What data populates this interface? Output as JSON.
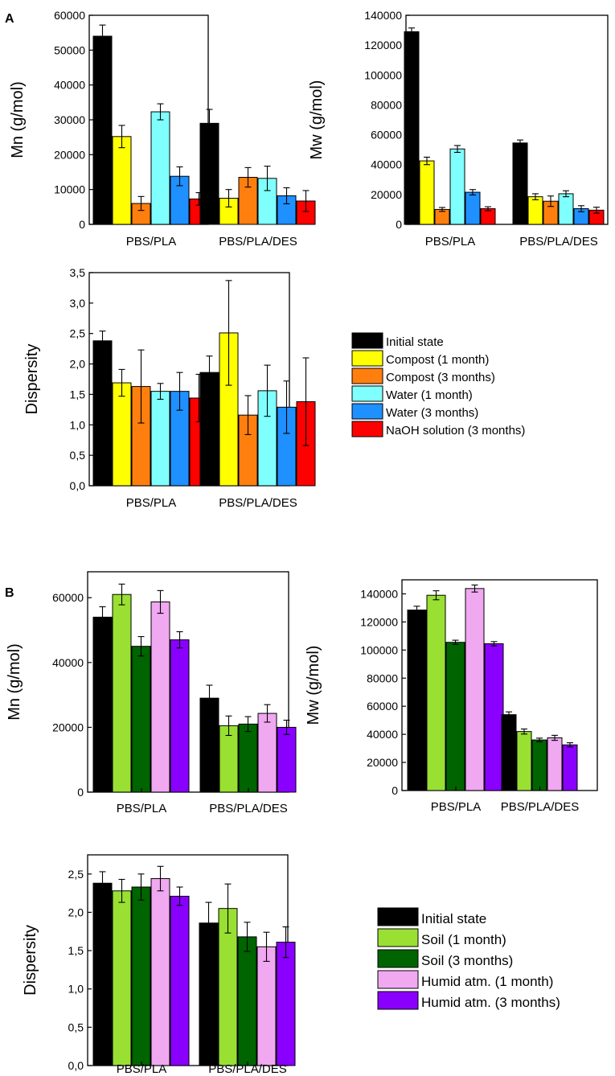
{
  "panel_labels": [
    "A",
    "B"
  ],
  "legend_a": {
    "entries": [
      {
        "label": "Initial state",
        "color": "#000000"
      },
      {
        "label": "Compost (1 month)",
        "color": "#ffff00"
      },
      {
        "label": "Compost (3 months)",
        "color": "#ff7f0e"
      },
      {
        "label": "Water (1 month)",
        "color": "#80ffff"
      },
      {
        "label": "Water (3 months)",
        "color": "#1e90ff"
      },
      {
        "label": "NaOH solution (3 months)",
        "color": "#ff0000"
      }
    ]
  },
  "legend_b": {
    "entries": [
      {
        "label": "Initial state",
        "color": "#000000"
      },
      {
        "label": "Soil (1 month)",
        "color": "#99e033"
      },
      {
        "label": "Soil (3 months)",
        "color": "#006400"
      },
      {
        "label": "Humid atm. (1 month)",
        "color": "#f0a8f0"
      },
      {
        "label": "Humid atm. (3 months)",
        "color": "#8a00ff"
      }
    ]
  },
  "chart_data": [
    {
      "id": "a_mn",
      "panel": "A",
      "type": "bar",
      "ylabel": "Mn (g/mol)",
      "ylim": [
        0,
        60000
      ],
      "yticks": [
        "0",
        "10000",
        "20000",
        "30000",
        "40000",
        "50000",
        "60000"
      ],
      "categories": [
        "PBS/PLA",
        "PBS/PLA/DES"
      ],
      "series": [
        {
          "name": "Initial state",
          "values": [
            54000,
            29000
          ],
          "errors": [
            3200,
            4000
          ]
        },
        {
          "name": "Compost (1 month)",
          "values": [
            25200,
            7500
          ],
          "errors": [
            3200,
            2500
          ]
        },
        {
          "name": "Compost (3 months)",
          "values": [
            6000,
            13500
          ],
          "errors": [
            2000,
            2800
          ]
        },
        {
          "name": "Water (1 month)",
          "values": [
            32300,
            13200
          ],
          "errors": [
            2300,
            3500
          ]
        },
        {
          "name": "Water (3 months)",
          "values": [
            13800,
            8200
          ],
          "errors": [
            2700,
            2300
          ]
        },
        {
          "name": "NaOH solution (3 months)",
          "values": [
            7300,
            6700
          ],
          "errors": [
            1800,
            3000
          ]
        }
      ]
    },
    {
      "id": "a_mw",
      "panel": "A",
      "type": "bar",
      "ylabel": "Mw (g/mol)",
      "ylim": [
        0,
        140000
      ],
      "yticks": [
        "0",
        "20000",
        "40000",
        "60000",
        "80000",
        "100000",
        "120000",
        "140000"
      ],
      "categories": [
        "PBS/PLA",
        "PBS/PLA/DES"
      ],
      "series": [
        {
          "name": "Initial state",
          "values": [
            129000,
            54500
          ],
          "errors": [
            2500,
            2000
          ]
        },
        {
          "name": "Compost (1 month)",
          "values": [
            42500,
            18500
          ],
          "errors": [
            2500,
            2000
          ]
        },
        {
          "name": "Compost (3 months)",
          "values": [
            10000,
            15500
          ],
          "errors": [
            1300,
            3500
          ]
        },
        {
          "name": "Water (1 month)",
          "values": [
            50500,
            20500
          ],
          "errors": [
            2300,
            2000
          ]
        },
        {
          "name": "Water (3 months)",
          "values": [
            21500,
            10500
          ],
          "errors": [
            1800,
            2000
          ]
        },
        {
          "name": "NaOH solution (3 months)",
          "values": [
            10500,
            9500
          ],
          "errors": [
            1300,
            2000
          ]
        }
      ]
    },
    {
      "id": "a_disp",
      "panel": "A",
      "type": "bar",
      "ylabel": "Dispersity",
      "ylim": [
        0,
        3.5
      ],
      "yticks": [
        "0,0",
        "0,5",
        "1,0",
        "1,5",
        "2,0",
        "2,5",
        "3,0",
        "3,5"
      ],
      "categories": [
        "PBS/PLA",
        "PBS/PLA/DES"
      ],
      "series": [
        {
          "name": "Initial state",
          "values": [
            2.38,
            1.86
          ],
          "errors": [
            0.16,
            0.27
          ]
        },
        {
          "name": "Compost (1 month)",
          "values": [
            1.69,
            2.51
          ],
          "errors": [
            0.22,
            0.86
          ]
        },
        {
          "name": "Compost (3 months)",
          "values": [
            1.63,
            1.16
          ],
          "errors": [
            0.6,
            0.32
          ]
        },
        {
          "name": "Water (1 month)",
          "values": [
            1.55,
            1.56
          ],
          "errors": [
            0.13,
            0.42
          ]
        },
        {
          "name": "Water (3 months)",
          "values": [
            1.55,
            1.29
          ],
          "errors": [
            0.31,
            0.43
          ]
        },
        {
          "name": "NaOH solution (3 months)",
          "values": [
            1.44,
            1.38
          ],
          "errors": [
            0.39,
            0.72
          ]
        }
      ]
    },
    {
      "id": "b_mn",
      "panel": "B",
      "type": "bar",
      "ylabel": "Mn (g/mol)",
      "ylim": [
        0,
        68000
      ],
      "yticks": [
        "0",
        "20000",
        "40000",
        "60000"
      ],
      "categories": [
        "PBS/PLA",
        "PBS/PLA/DES"
      ],
      "series": [
        {
          "name": "Initial state",
          "values": [
            54000,
            29000
          ],
          "errors": [
            3200,
            4000
          ]
        },
        {
          "name": "Soil (1 month)",
          "values": [
            61000,
            20500
          ],
          "errors": [
            3200,
            3000
          ]
        },
        {
          "name": "Soil (3 months)",
          "values": [
            45000,
            21000
          ],
          "errors": [
            3000,
            2300
          ]
        },
        {
          "name": "Humid atm. (1 month)",
          "values": [
            58700,
            24300
          ],
          "errors": [
            3500,
            2700
          ]
        },
        {
          "name": "Humid atm. (3 months)",
          "values": [
            47000,
            20000
          ],
          "errors": [
            2500,
            2200
          ]
        }
      ]
    },
    {
      "id": "b_mw",
      "panel": "B",
      "type": "bar",
      "ylabel": "Mw (g/mol)",
      "ylim": [
        0,
        150000
      ],
      "yticks": [
        "0",
        "20000",
        "40000",
        "60000",
        "80000",
        "100000",
        "120000",
        "140000"
      ],
      "categories": [
        "PBS/PLA",
        "PBS/PLA/DES"
      ],
      "series": [
        {
          "name": "Initial state",
          "values": [
            128500,
            54000
          ],
          "errors": [
            2700,
            2000
          ]
        },
        {
          "name": "Soil (1 month)",
          "values": [
            139000,
            42000
          ],
          "errors": [
            3200,
            1800
          ]
        },
        {
          "name": "Soil (3 months)",
          "values": [
            105500,
            36000
          ],
          "errors": [
            1500,
            1300
          ]
        },
        {
          "name": "Humid atm. (1 month)",
          "values": [
            143800,
            37500
          ],
          "errors": [
            2500,
            1800
          ]
        },
        {
          "name": "Humid atm. (3 months)",
          "values": [
            104500,
            32500
          ],
          "errors": [
            1500,
            1500
          ]
        }
      ]
    },
    {
      "id": "b_disp",
      "panel": "B",
      "type": "bar",
      "ylabel": "Dispersity",
      "ylim": [
        0,
        2.75
      ],
      "yticks": [
        "0,0",
        "0,5",
        "1,0",
        "1,5",
        "2,0",
        "2,5"
      ],
      "categories": [
        "PBS/PLA",
        "PBS/PLA/DES"
      ],
      "series": [
        {
          "name": "Initial state",
          "values": [
            2.38,
            1.86
          ],
          "errors": [
            0.15,
            0.27
          ]
        },
        {
          "name": "Soil (1 month)",
          "values": [
            2.28,
            2.05
          ],
          "errors": [
            0.15,
            0.32
          ]
        },
        {
          "name": "Soil (3 months)",
          "values": [
            2.33,
            1.68
          ],
          "errors": [
            0.17,
            0.19
          ]
        },
        {
          "name": "Humid atm. (1 month)",
          "values": [
            2.44,
            1.55
          ],
          "errors": [
            0.16,
            0.19
          ]
        },
        {
          "name": "Humid atm. (3 months)",
          "values": [
            2.21,
            1.61
          ],
          "errors": [
            0.12,
            0.2
          ]
        }
      ]
    }
  ]
}
